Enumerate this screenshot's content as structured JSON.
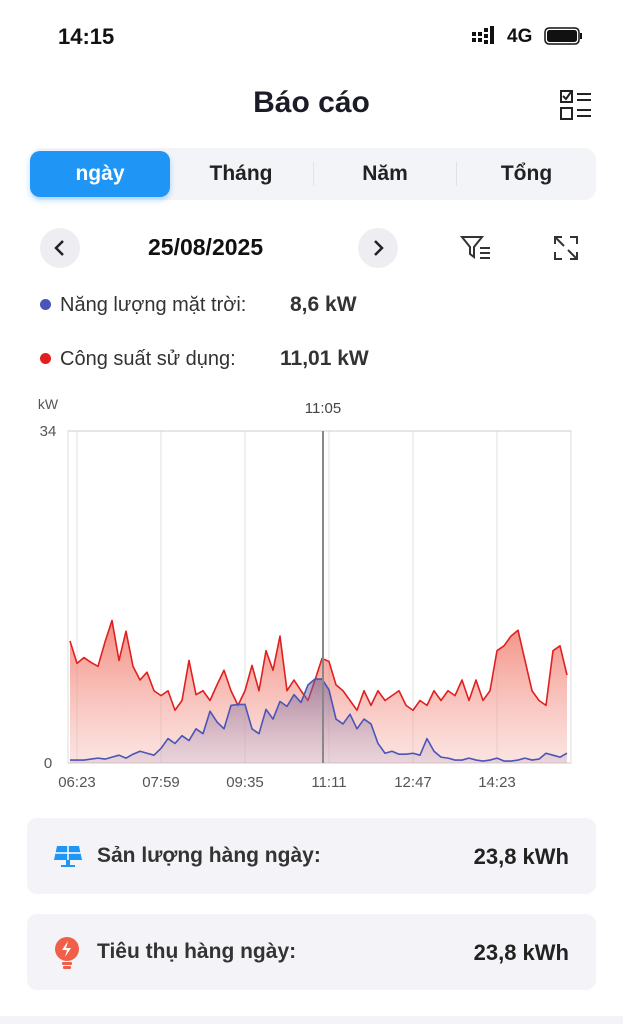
{
  "status_bar": {
    "time": "14:15",
    "network": "4G"
  },
  "header": {
    "title": "Báo cáo"
  },
  "tabs": [
    "ngày",
    "Tháng",
    "Năm",
    "Tổng"
  ],
  "date_nav": {
    "date": "25/08/2025"
  },
  "legend": {
    "solar_label": "Năng lượng mặt trời:",
    "solar_value": "8,6 kW",
    "usage_label": "Công suất sử dụng:",
    "usage_value": "11,01 kW"
  },
  "chart_data": {
    "type": "area",
    "y_label": "kW",
    "cursor_label": "11:05",
    "categories": [
      null,
      "06:23",
      null,
      null,
      null,
      null,
      null,
      null,
      null,
      null,
      null,
      null,
      null,
      "07:59",
      null,
      null,
      null,
      null,
      null,
      null,
      null,
      null,
      null,
      null,
      null,
      "09:35",
      null,
      null,
      null,
      null,
      null,
      null,
      null,
      null,
      null,
      null,
      null,
      "11:11",
      null,
      null,
      null,
      null,
      null,
      null,
      null,
      null,
      null,
      null,
      null,
      "12:47",
      null,
      null,
      null,
      null,
      null,
      null,
      null,
      null,
      null,
      null,
      null,
      "14:23",
      null,
      null,
      null,
      null,
      null,
      null,
      null,
      null,
      null,
      null
    ],
    "series": [
      {
        "name": "Công suất sử dụng",
        "color": "#e02020",
        "values": [
          12.5,
          10.2,
          10.8,
          10.3,
          9.9,
          12.4,
          14.6,
          10.5,
          13.5,
          9.9,
          8.5,
          9.3,
          7.4,
          6.9,
          7.4,
          5.4,
          6.4,
          10.5,
          7,
          7.4,
          6.4,
          8,
          9.5,
          7.4,
          5.9,
          7.4,
          10,
          7.4,
          11.5,
          9.5,
          13,
          7.4,
          8.5,
          7.4,
          6.4,
          8.5,
          10.7,
          10.4,
          8,
          7.4,
          6.4,
          5.4,
          7.4,
          5.9,
          7.4,
          6.4,
          6.9,
          7.4,
          5.9,
          5.4,
          6.4,
          5.9,
          7.4,
          6.4,
          7.4,
          6.9,
          8.5,
          6.4,
          8.5,
          6.4,
          7.4,
          11.5,
          12,
          13,
          13.6,
          10.5,
          7.4,
          6.4,
          5.9,
          11.5,
          12,
          9
        ]
      },
      {
        "name": "Năng lượng mặt trời",
        "color": "#4a55b8",
        "values": [
          0.3,
          0.3,
          0.3,
          0.4,
          0.5,
          0.4,
          0.6,
          0.8,
          0.5,
          0.9,
          1.2,
          1,
          0.8,
          1.5,
          2.5,
          2,
          2.8,
          2.3,
          3.5,
          3,
          5.3,
          4.2,
          3.5,
          5.9,
          6,
          6,
          3.5,
          3,
          5.5,
          4.5,
          6.3,
          5.8,
          7,
          6.2,
          8,
          8.6,
          8.6,
          7.5,
          4.5,
          4,
          5,
          3.5,
          4.5,
          4,
          2,
          1,
          1.2,
          0.9,
          0.9,
          1,
          0.8,
          2.5,
          1.2,
          0.6,
          0.5,
          0.3,
          0.3,
          0.5,
          0.3,
          0.2,
          0.3,
          0.5,
          0.2,
          0.2,
          0.3,
          0.5,
          0.3,
          0.4,
          1,
          0.8,
          0.6,
          1
        ]
      }
    ],
    "ylim": [
      0,
      34
    ],
    "yticks": [
      0,
      34
    ]
  },
  "cards": [
    {
      "label": "Sản lượng hàng ngày:",
      "value": "23,8 kWh"
    },
    {
      "label": "Tiêu thụ hàng ngày:",
      "value": "23,8 kWh"
    }
  ]
}
